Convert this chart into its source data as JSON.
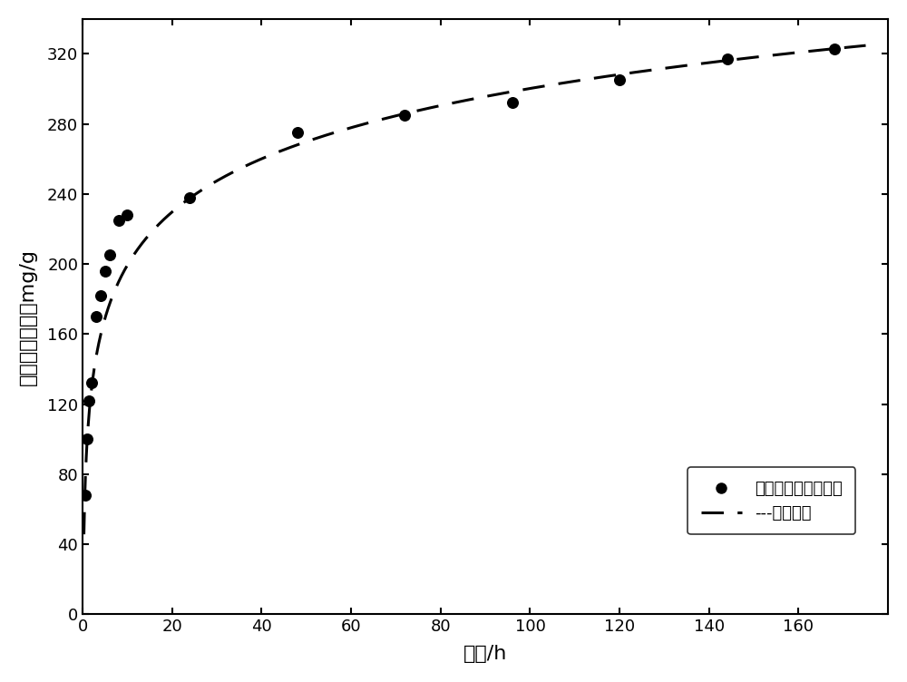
{
  "x_data": [
    0.5,
    1.0,
    1.5,
    2.0,
    3.0,
    4.0,
    5.0,
    6.0,
    8.0,
    10.0,
    24.0,
    48.0,
    72.0,
    96.0,
    120.0,
    144.0,
    168.0
  ],
  "y_data": [
    68,
    100,
    122,
    132,
    170,
    182,
    196,
    205,
    225,
    228,
    238,
    275,
    285,
    292,
    305,
    317,
    323
  ],
  "xlabel": "释放/h",
  "ylabel": "碳源累积释放量mg/g",
  "legend_scatter": "碱加热处理玉米秸秵",
  "legend_line": "拟合曲线",
  "scatter_color": "#000000",
  "line_color": "#000000",
  "background_color": "#ffffff",
  "xlim": [
    0,
    180
  ],
  "ylim": [
    0,
    340
  ],
  "xticks": [
    0,
    20,
    40,
    60,
    80,
    100,
    120,
    140,
    160
  ],
  "yticks": [
    0,
    40,
    80,
    120,
    160,
    200,
    240,
    280,
    320
  ],
  "a_fit": 43.84,
  "b_fit": 98.38,
  "fit_x_start": 0.3,
  "fit_x_end": 175.0
}
